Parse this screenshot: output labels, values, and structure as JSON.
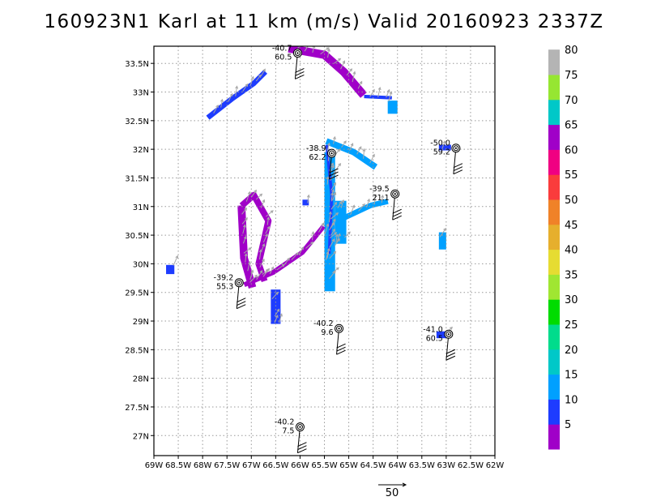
{
  "chart_data": {
    "type": "heatmap",
    "title": "160923N1 Karl at 11 km (m/s) Valid 20160923 2337Z",
    "xlim": [
      -69,
      -62
    ],
    "ylim": [
      26.65,
      33.8
    ],
    "x_ticks": [
      {
        "v": -69,
        "label": "69W"
      },
      {
        "v": -68.5,
        "label": "68.5W"
      },
      {
        "v": -68,
        "label": "68W"
      },
      {
        "v": -67.5,
        "label": "67.5W"
      },
      {
        "v": -67,
        "label": "67W"
      },
      {
        "v": -66.5,
        "label": "66.5W"
      },
      {
        "v": -66,
        "label": "66W"
      },
      {
        "v": -65.5,
        "label": "65.5W"
      },
      {
        "v": -65,
        "label": "65W"
      },
      {
        "v": -64.5,
        "label": "64.5W"
      },
      {
        "v": -64,
        "label": "64W"
      },
      {
        "v": -63.5,
        "label": "63.5W"
      },
      {
        "v": -63,
        "label": "63W"
      },
      {
        "v": -62.5,
        "label": "62.5W"
      },
      {
        "v": -62,
        "label": "62W"
      }
    ],
    "y_ticks": [
      {
        "v": 27,
        "label": "27N"
      },
      {
        "v": 27.5,
        "label": "27.5N"
      },
      {
        "v": 28,
        "label": "28N"
      },
      {
        "v": 28.5,
        "label": "28.5N"
      },
      {
        "v": 29,
        "label": "29N"
      },
      {
        "v": 29.5,
        "label": "29.5N"
      },
      {
        "v": 30,
        "label": "30N"
      },
      {
        "v": 30.5,
        "label": "30.5N"
      },
      {
        "v": 31,
        "label": "31N"
      },
      {
        "v": 31.5,
        "label": "31.5N"
      },
      {
        "v": 32,
        "label": "32N"
      },
      {
        "v": 32.5,
        "label": "32.5N"
      },
      {
        "v": 33,
        "label": "33N"
      },
      {
        "v": 33.5,
        "label": "33.5N"
      }
    ],
    "grid": true,
    "colorbar": {
      "labels": [
        "5",
        "10",
        "15",
        "20",
        "25",
        "30",
        "35",
        "40",
        "45",
        "50",
        "55",
        "60",
        "65",
        "70",
        "75",
        "80"
      ],
      "colors": [
        "#a000c8",
        "#1e3cff",
        "#00a0ff",
        "#00c8c8",
        "#00dc8c",
        "#00dc00",
        "#a0e632",
        "#e6dc32",
        "#e6af2d",
        "#f08228",
        "#fa3c3c",
        "#f00082",
        "#a000c8",
        "#00c8c8",
        "#96e632",
        "#b4b4b4"
      ]
    },
    "wind_regions": [
      {
        "kind": "band",
        "path": [
          [
            -67.85,
            32.58
          ],
          [
            -67.4,
            32.88
          ],
          [
            -66.95,
            33.15
          ],
          [
            -66.75,
            33.32
          ]
        ],
        "width": 0.11,
        "value": 10
      },
      {
        "kind": "band",
        "path": [
          [
            -66.15,
            33.75
          ],
          [
            -65.5,
            33.65
          ],
          [
            -65.1,
            33.35
          ],
          [
            -64.75,
            33.0
          ]
        ],
        "width": 0.17,
        "value": 5
      },
      {
        "kind": "band",
        "path": [
          [
            -64.65,
            32.92
          ],
          [
            -64.15,
            32.9
          ]
        ],
        "width": 0.07,
        "value": 10
      },
      {
        "kind": "rect",
        "x": [
          -64.2,
          -64.0
        ],
        "y": [
          32.62,
          32.85
        ],
        "value": 15
      },
      {
        "kind": "rect",
        "x": [
          -65.5,
          -65.28
        ],
        "y": [
          29.52,
          31.95
        ],
        "value": 15
      },
      {
        "kind": "rect",
        "x": [
          -65.28,
          -65.05
        ],
        "y": [
          30.35,
          31.1
        ],
        "value": 15
      },
      {
        "kind": "band",
        "path": [
          [
            -65.4,
            32.12
          ],
          [
            -64.9,
            31.95
          ],
          [
            -64.5,
            31.72
          ]
        ],
        "width": 0.13,
        "value": 15
      },
      {
        "kind": "band",
        "path": [
          [
            -65.05,
            30.82
          ],
          [
            -64.55,
            31.02
          ],
          [
            -64.25,
            31.08
          ]
        ],
        "width": 0.11,
        "value": 15
      },
      {
        "kind": "band",
        "path": [
          [
            -65.45,
            32.05
          ],
          [
            -65.35,
            31.2
          ],
          [
            -65.4,
            30.2
          ]
        ],
        "width": 0.06,
        "value": 10
      },
      {
        "kind": "band",
        "path": [
          [
            -67.1,
            29.65
          ],
          [
            -66.55,
            29.85
          ],
          [
            -65.95,
            30.2
          ],
          [
            -65.55,
            30.62
          ]
        ],
        "width": 0.1,
        "value": 5
      },
      {
        "kind": "band",
        "path": [
          [
            -67.2,
            30.95
          ],
          [
            -67.15,
            30.1
          ],
          [
            -67.0,
            29.65
          ]
        ],
        "width": 0.16,
        "value": 5
      },
      {
        "kind": "band",
        "path": [
          [
            -67.15,
            31.05
          ],
          [
            -66.95,
            31.2
          ],
          [
            -66.65,
            30.75
          ],
          [
            -66.85,
            30.0
          ],
          [
            -66.75,
            29.75
          ]
        ],
        "width": 0.13,
        "value": 5
      },
      {
        "kind": "rect",
        "x": [
          -66.6,
          -66.4
        ],
        "y": [
          28.95,
          29.55
        ],
        "value": 10
      },
      {
        "kind": "rect",
        "x": [
          -68.75,
          -68.58
        ],
        "y": [
          29.82,
          29.98
        ],
        "value": 10
      },
      {
        "kind": "rect",
        "x": [
          -65.95,
          -65.82
        ],
        "y": [
          31.02,
          31.12
        ],
        "value": 10
      },
      {
        "kind": "rect",
        "x": [
          -63.15,
          -63.0
        ],
        "y": [
          30.25,
          30.55
        ],
        "value": 15
      },
      {
        "kind": "rect",
        "x": [
          -63.15,
          -62.9
        ],
        "y": [
          31.98,
          32.08
        ],
        "value": 10
      },
      {
        "kind": "rect",
        "x": [
          -63.2,
          -63.0
        ],
        "y": [
          28.7,
          28.82
        ],
        "value": 10
      }
    ],
    "observations": [
      {
        "lon": -66.05,
        "lat": 33.68,
        "temp": "-40.7",
        "wind": "60.5"
      },
      {
        "lon": -65.35,
        "lat": 31.93,
        "temp": "-38.9",
        "wind": "62.2"
      },
      {
        "lon": -64.05,
        "lat": 31.22,
        "temp": "-39.5",
        "wind": "21.1"
      },
      {
        "lon": -62.8,
        "lat": 32.02,
        "temp": "-50.0",
        "wind": "59.2"
      },
      {
        "lon": -67.25,
        "lat": 29.67,
        "temp": "-39.2",
        "wind": "55.3"
      },
      {
        "lon": -65.2,
        "lat": 28.87,
        "temp": "-40.2",
        "wind": "9.6"
      },
      {
        "lon": -62.95,
        "lat": 28.77,
        "temp": "-41.0",
        "wind": "60.5"
      },
      {
        "lon": -66.0,
        "lat": 27.15,
        "temp": "-40.2",
        "wind": "7.5"
      }
    ],
    "reference_vector": {
      "label": "50"
    }
  }
}
